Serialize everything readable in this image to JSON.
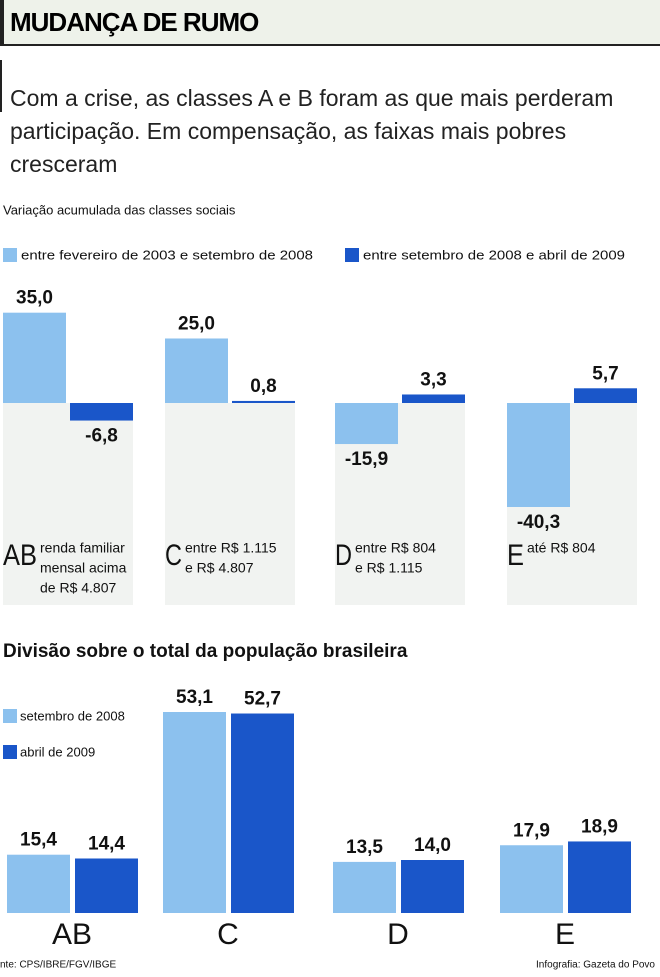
{
  "header": {
    "title": "MUDANÇA DE RUMO",
    "subtitle": "Com a crise, as classes A e B foram as que mais perderam participação. Em compensação, as faixas mais pobres cresceram"
  },
  "chart_data": [
    {
      "type": "bar",
      "title": "Variação acumulada das classes sociais",
      "categories": [
        "AB",
        "C",
        "D",
        "E"
      ],
      "category_notes": [
        [
          "renda familiar",
          "mensal acima",
          "de R$ 4.807"
        ],
        [
          "entre R$ 1.115",
          "e R$ 4.807"
        ],
        [
          "entre R$ 804",
          "e R$ 1.115"
        ],
        [
          "até R$ 804"
        ]
      ],
      "series": [
        {
          "name": "entre fevereiro de 2003 e setembro de 2008",
          "color": "#8cc1ee",
          "values": [
            35.0,
            25.0,
            -15.9,
            -40.3
          ],
          "value_labels": [
            "35,0",
            "25,0",
            "-15,9",
            "-40,3"
          ]
        },
        {
          "name": "entre setembro de 2008 e abril de 2009",
          "color": "#1a56c9",
          "values": [
            -6.8,
            0.8,
            3.3,
            5.7
          ],
          "value_labels": [
            "-6,8",
            "0,8",
            "3,3",
            "5,7"
          ]
        }
      ]
    },
    {
      "type": "bar",
      "title": "Divisão sobre o total da população brasileira",
      "categories": [
        "AB",
        "C",
        "D",
        "E"
      ],
      "series": [
        {
          "name": "setembro de 2008",
          "color": "#8cc1ee",
          "values": [
            15.4,
            53.1,
            13.5,
            17.9
          ],
          "value_labels": [
            "15,4",
            "53,1",
            "13,5",
            "17,9"
          ]
        },
        {
          "name": "abril de 2009",
          "color": "#1a56c9",
          "values": [
            14.4,
            52.7,
            14.0,
            18.9
          ],
          "value_labels": [
            "14,4",
            "52,7",
            "14,0",
            "18,9"
          ]
        }
      ]
    }
  ],
  "footer": {
    "source": "nte: CPS/IBRE/FGV/IBGE",
    "credit": "Infografia: Gazeta do Povo"
  }
}
